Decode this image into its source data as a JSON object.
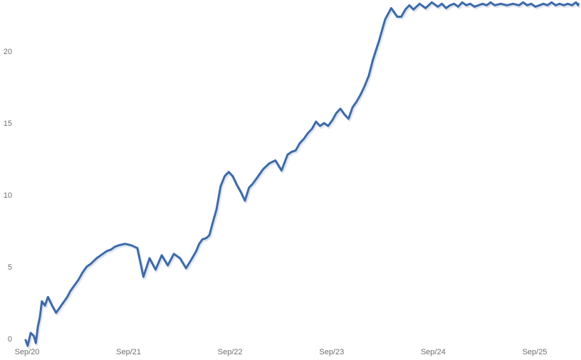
{
  "chart_data": {
    "type": "line",
    "title": "",
    "xlabel": "",
    "ylabel": "",
    "x_tick_labels": [
      "Sep/20",
      "Sep/21",
      "Sep/22",
      "Sep/23",
      "Sep/24",
      "Sep/25"
    ],
    "y_ticks": [
      0,
      5,
      10,
      15,
      20
    ],
    "ylim": [
      -0.6,
      23.8
    ],
    "xlim": [
      0,
      5.5
    ],
    "grid": false,
    "legend": "none",
    "colors": {
      "line": "#3d6aaa",
      "tick_text": "#6f6f6f"
    },
    "series": [
      {
        "x": [
          0.0,
          0.02,
          0.05,
          0.08,
          0.1,
          0.12,
          0.14,
          0.16,
          0.19,
          0.22,
          0.26,
          0.3,
          0.33,
          0.35,
          0.38,
          0.41,
          0.44,
          0.48,
          0.52,
          0.56,
          0.6,
          0.64,
          0.7,
          0.76,
          0.8,
          0.84,
          0.88,
          0.92,
          0.98,
          1.04,
          1.1,
          1.16,
          1.22,
          1.28,
          1.34,
          1.4,
          1.46,
          1.52,
          1.58,
          1.64,
          1.68,
          1.71,
          1.74,
          1.78,
          1.81,
          1.84,
          1.88,
          1.92,
          1.96,
          2.0,
          2.04,
          2.08,
          2.12,
          2.16,
          2.2,
          2.24,
          2.28,
          2.34,
          2.4,
          2.46,
          2.52,
          2.58,
          2.62,
          2.66,
          2.7,
          2.74,
          2.78,
          2.82,
          2.86,
          2.9,
          2.94,
          2.98,
          3.02,
          3.06,
          3.1,
          3.14,
          3.18,
          3.22,
          3.26,
          3.3,
          3.34,
          3.38,
          3.42,
          3.48,
          3.54,
          3.6,
          3.66,
          3.7,
          3.74,
          3.78,
          3.82,
          3.88,
          3.94,
          4.0,
          4.06,
          4.1,
          4.14,
          4.18,
          4.22,
          4.26,
          4.3,
          4.34,
          4.38,
          4.42,
          4.46,
          4.5,
          4.54,
          4.58,
          4.62,
          4.68,
          4.74,
          4.8,
          4.86,
          4.9,
          4.94,
          4.98,
          5.02,
          5.06,
          5.1,
          5.14,
          5.18,
          5.22,
          5.26,
          5.3,
          5.34,
          5.38,
          5.42,
          5.46,
          5.5
        ],
        "values": [
          -0.1,
          -0.5,
          0.4,
          0.2,
          -0.3,
          0.8,
          1.5,
          2.6,
          2.3,
          2.9,
          2.3,
          1.8,
          2.1,
          2.3,
          2.6,
          2.9,
          3.3,
          3.7,
          4.1,
          4.6,
          5.0,
          5.2,
          5.6,
          5.9,
          6.1,
          6.2,
          6.4,
          6.5,
          6.6,
          6.5,
          6.3,
          4.3,
          5.6,
          4.8,
          5.8,
          5.1,
          5.9,
          5.6,
          4.9,
          5.6,
          6.1,
          6.6,
          6.9,
          7.0,
          7.2,
          8.0,
          9.0,
          10.6,
          11.3,
          11.6,
          11.3,
          10.7,
          10.2,
          9.6,
          10.5,
          10.8,
          11.2,
          11.8,
          12.2,
          12.4,
          11.7,
          12.8,
          13.0,
          13.1,
          13.6,
          13.9,
          14.3,
          14.6,
          15.1,
          14.8,
          15.0,
          14.8,
          15.2,
          15.7,
          16.0,
          15.6,
          15.3,
          16.1,
          16.5,
          17.0,
          17.6,
          18.3,
          19.4,
          20.7,
          22.2,
          23.0,
          22.4,
          22.4,
          22.9,
          23.2,
          22.9,
          23.3,
          23.0,
          23.4,
          23.1,
          23.3,
          23.0,
          23.2,
          23.3,
          23.1,
          23.4,
          23.2,
          23.3,
          23.1,
          23.2,
          23.3,
          23.2,
          23.4,
          23.2,
          23.3,
          23.2,
          23.3,
          23.2,
          23.4,
          23.2,
          23.3,
          23.1,
          23.2,
          23.3,
          23.2,
          23.4,
          23.2,
          23.3,
          23.2,
          23.3,
          23.2,
          23.4,
          23.2,
          23.3
        ]
      }
    ]
  }
}
